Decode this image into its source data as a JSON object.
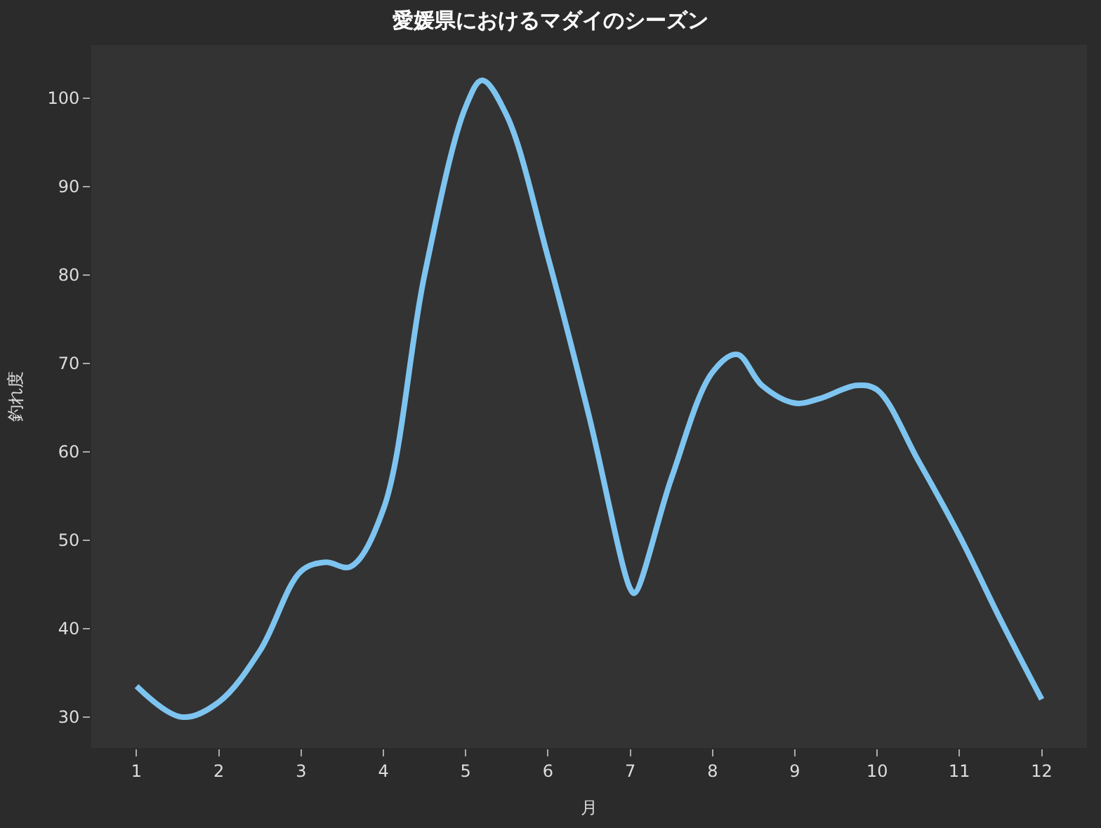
{
  "chart_data": {
    "type": "line",
    "title": "愛媛県におけるマダイのシーズン",
    "xlabel": "月",
    "ylabel": "釣れ度",
    "x": [
      1,
      1.55,
      2,
      2.5,
      3,
      3.3,
      3.6,
      4,
      4.5,
      5,
      5.2,
      5.5,
      6,
      6.5,
      7,
      7.05,
      7.5,
      8,
      8.3,
      8.6,
      9,
      9.3,
      9.75,
      10,
      10.5,
      11,
      11.5,
      12
    ],
    "series": [
      {
        "color": "#7ec4f0",
        "values": [
          33.5,
          30,
          31.7,
          37.5,
          46.5,
          47.5,
          47,
          53.5,
          80,
          99,
          102,
          98,
          82,
          64,
          44.5,
          44,
          57,
          69,
          71,
          67.5,
          65.5,
          66,
          67.5,
          67,
          59,
          50.5,
          41,
          32
        ]
      }
    ],
    "xlim": [
      0.45,
      12.55
    ],
    "ylim": [
      26.5,
      106
    ],
    "xticks": [
      1,
      2,
      3,
      4,
      5,
      6,
      7,
      8,
      9,
      10,
      11,
      12
    ],
    "yticks": [
      30,
      40,
      50,
      60,
      70,
      80,
      90,
      100
    ],
    "grid": false,
    "legend": false,
    "marker": "none",
    "line_style": "solid"
  }
}
